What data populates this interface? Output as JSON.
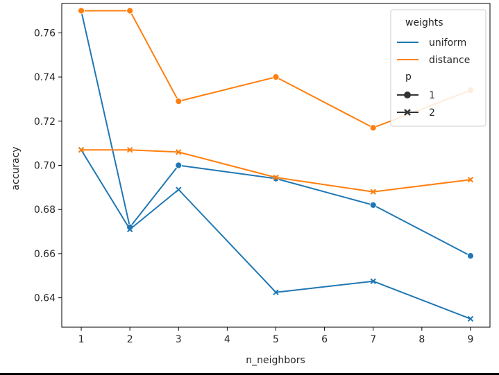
{
  "chart_data": {
    "type": "line",
    "xlabel": "n_neighbors",
    "ylabel": "accuracy",
    "xlim": [
      0.6,
      9.4
    ],
    "ylim": [
      0.6267,
      0.7733
    ],
    "x_ticks": [
      1,
      2,
      3,
      4,
      5,
      6,
      7,
      8,
      9
    ],
    "y_ticks": [
      0.64,
      0.66,
      0.68,
      0.7,
      0.72,
      0.74,
      0.76
    ],
    "y_tick_labels": [
      "0.64",
      "0.66",
      "0.68",
      "0.70",
      "0.72",
      "0.74",
      "0.76"
    ],
    "grid": false,
    "legend": {
      "position": "top-right",
      "hue_title": "weights",
      "hue_items": [
        {
          "label": "uniform",
          "color": "#1f77b4"
        },
        {
          "label": "distance",
          "color": "#ff7f0e"
        }
      ],
      "style_title": "p",
      "style_items": [
        {
          "label": "1",
          "marker": "circle"
        },
        {
          "label": "2",
          "marker": "x"
        }
      ]
    },
    "series": [
      {
        "weights": "uniform",
        "p": "1",
        "color": "#1f77b4",
        "marker": "circle",
        "x": [
          1,
          2,
          3,
          5,
          7,
          9
        ],
        "y": [
          0.77,
          0.672,
          0.7,
          0.694,
          0.682,
          0.659
        ]
      },
      {
        "weights": "uniform",
        "p": "2",
        "color": "#1f77b4",
        "marker": "x",
        "x": [
          1,
          2,
          3,
          5,
          7,
          9
        ],
        "y": [
          0.707,
          0.671,
          0.689,
          0.6425,
          0.6475,
          0.6305
        ]
      },
      {
        "weights": "distance",
        "p": "1",
        "color": "#ff7f0e",
        "marker": "circle",
        "x": [
          1,
          2,
          3,
          5,
          7,
          9
        ],
        "y": [
          0.77,
          0.77,
          0.729,
          0.74,
          0.717,
          0.734
        ]
      },
      {
        "weights": "distance",
        "p": "2",
        "color": "#ff7f0e",
        "marker": "x",
        "x": [
          1,
          2,
          3,
          5,
          7,
          9
        ],
        "y": [
          0.707,
          0.707,
          0.706,
          0.6945,
          0.688,
          0.6935
        ]
      }
    ]
  }
}
